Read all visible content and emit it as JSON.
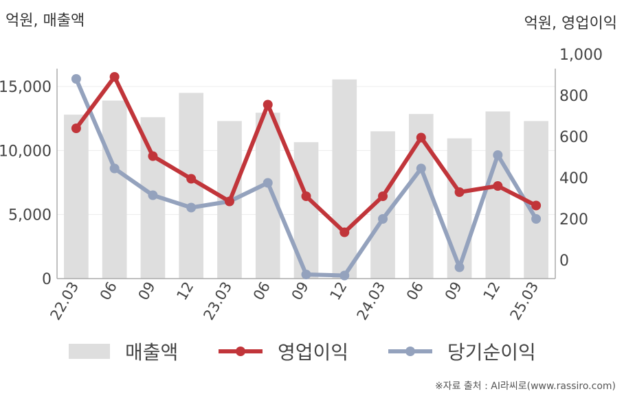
{
  "left_axis_title": "억원, 매출액",
  "right_axis_title": "억원, 영업이익",
  "legend": {
    "revenue": "매출액",
    "operating_income": "영업이익",
    "net_income": "당기순이익"
  },
  "source": "※자료 출처 : AI라씨로(www.rassiro.com)",
  "colors": {
    "revenue": "#dedede",
    "operating_income": "#c1353a",
    "net_income": "#94a2bd",
    "axis": "#aaaaaa",
    "grid": "#ececec"
  },
  "chart_data": {
    "type": "bar",
    "categories": [
      "22.03",
      "06",
      "09",
      "12",
      "23.03",
      "06",
      "09",
      "12",
      "24.03",
      "06",
      "09",
      "12",
      "25.03"
    ],
    "left_axis": {
      "ylim": [
        0,
        16000
      ],
      "ticks": [
        0,
        5000,
        10000,
        15000
      ],
      "tick_labels": [
        "0",
        "5,000",
        "10,000",
        "15,000"
      ]
    },
    "right_axis": {
      "ylim": [
        -90,
        1000
      ],
      "ticks": [
        0,
        200,
        400,
        600,
        800,
        1000
      ],
      "tick_labels": [
        "0",
        "200",
        "400",
        "600",
        "800",
        "1,000"
      ]
    },
    "series": [
      {
        "name": "매출액",
        "type": "bar",
        "axis": "left",
        "values": [
          12800,
          13900,
          12600,
          14500,
          12300,
          12950,
          10650,
          15550,
          11500,
          12850,
          10950,
          13050,
          12300
        ]
      },
      {
        "name": "영업이익",
        "type": "line",
        "axis": "right",
        "values": [
          640,
          890,
          505,
          395,
          285,
          755,
          310,
          135,
          310,
          595,
          330,
          360,
          265
        ]
      },
      {
        "name": "당기순이익",
        "type": "line",
        "axis": "right",
        "values": [
          880,
          445,
          315,
          255,
          285,
          375,
          -70,
          -75,
          200,
          445,
          -35,
          510,
          200
        ]
      }
    ]
  }
}
